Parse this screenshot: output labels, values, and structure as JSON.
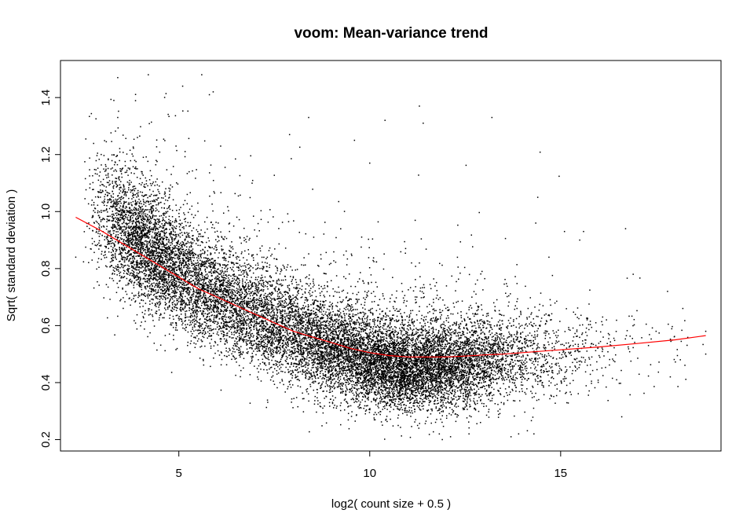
{
  "chart_data": {
    "type": "scatter",
    "title": "voom: Mean-variance trend",
    "xlabel": "log2( count size + 0.5 )",
    "ylabel": "Sqrt( standard deviation )",
    "xlim": [
      1.9,
      19.2
    ],
    "ylim": [
      0.16,
      1.53
    ],
    "xticks": [
      5,
      10,
      15
    ],
    "yticks": [
      0.2,
      0.4,
      0.6,
      0.8,
      1.0,
      1.2,
      1.4
    ],
    "ytick_labels": [
      "0.2",
      "0.4",
      "0.6",
      "0.8",
      "1.0",
      "1.2",
      "1.4"
    ],
    "grid": false,
    "legend": "none",
    "point_color": "#000000",
    "trend_color": "#ff0000",
    "trend": {
      "name": "lowess trend",
      "x": [
        2.3,
        3.0,
        3.5,
        4.0,
        4.5,
        5.0,
        5.5,
        6.0,
        6.5,
        7.0,
        7.5,
        8.0,
        8.5,
        9.0,
        9.5,
        10.0,
        10.5,
        11.0,
        11.5,
        12.0,
        12.5,
        13.0,
        13.5,
        14.0,
        15.0,
        16.0,
        17.0,
        18.0,
        18.8
      ],
      "y": [
        0.98,
        0.93,
        0.89,
        0.85,
        0.81,
        0.77,
        0.73,
        0.7,
        0.67,
        0.64,
        0.61,
        0.58,
        0.56,
        0.54,
        0.52,
        0.505,
        0.495,
        0.49,
        0.49,
        0.49,
        0.493,
        0.497,
        0.5,
        0.505,
        0.515,
        0.525,
        0.537,
        0.55,
        0.565
      ]
    },
    "cloud": {
      "description": "approximately 16000 genes; each gene is one point (x = mean log2 count, y = sqrt standard deviation)",
      "n_points": 16000,
      "density_x": [
        2.5,
        3.0,
        3.5,
        4.0,
        4.5,
        5.0,
        5.5,
        6.0,
        7.0,
        8.0,
        9.0,
        10.0,
        11.0,
        12.0,
        13.0,
        14.0,
        15.0,
        16.0,
        17.0,
        18.0,
        18.8
      ],
      "density_w": [
        0.2,
        3,
        9,
        12,
        12,
        10,
        9,
        8,
        8,
        8,
        10,
        13,
        14,
        11,
        7,
        3.2,
        1.3,
        0.6,
        0.3,
        0.15,
        0.05
      ],
      "center_offset_x": [
        2.5,
        3.5,
        4.5,
        6.0,
        8.0,
        10.0,
        11.0,
        12.0,
        14.0,
        18.8
      ],
      "center_offset_dy": [
        0.06,
        0.05,
        0.02,
        0.0,
        -0.01,
        -0.03,
        -0.04,
        -0.03,
        -0.02,
        -0.02
      ],
      "spread_x": [
        2.5,
        3.5,
        4.5,
        6.0,
        8.0,
        10.0,
        11.0,
        12.0,
        14.0,
        16.0,
        18.8
      ],
      "spread_sd": [
        0.12,
        0.11,
        0.1,
        0.095,
        0.09,
        0.08,
        0.075,
        0.08,
        0.08,
        0.08,
        0.08
      ],
      "outliers": [
        [
          2.3,
          0.84
        ],
        [
          3.4,
          1.47
        ],
        [
          4.2,
          1.48
        ],
        [
          5.6,
          1.48
        ],
        [
          5.1,
          1.44
        ],
        [
          5.8,
          1.41
        ],
        [
          5.9,
          1.42
        ],
        [
          3.4,
          1.33
        ],
        [
          8.4,
          1.33
        ],
        [
          11.3,
          1.37
        ],
        [
          13.2,
          1.33
        ],
        [
          10.4,
          1.32
        ],
        [
          9.6,
          1.25
        ],
        [
          7.9,
          1.27
        ],
        [
          11.4,
          1.31
        ],
        [
          10.0,
          1.17
        ],
        [
          14.4,
          1.05
        ],
        [
          16.7,
          0.94
        ],
        [
          15.6,
          0.93
        ],
        [
          16.9,
          0.78
        ],
        [
          17.8,
          0.72
        ],
        [
          18.2,
          0.66
        ],
        [
          18.8,
          0.58
        ],
        [
          18.8,
          0.5
        ],
        [
          17.3,
          0.53
        ],
        [
          16.6,
          0.28
        ],
        [
          13.7,
          0.21
        ],
        [
          13.9,
          0.22
        ],
        [
          12.6,
          0.22
        ],
        [
          11.9,
          0.2
        ],
        [
          14.3,
          0.22
        ],
        [
          12.9,
          0.26
        ],
        [
          15.1,
          0.93
        ],
        [
          15.5,
          0.9
        ],
        [
          16.2,
          0.62
        ],
        [
          16.1,
          0.63
        ],
        [
          17.5,
          0.58
        ]
      ]
    }
  }
}
